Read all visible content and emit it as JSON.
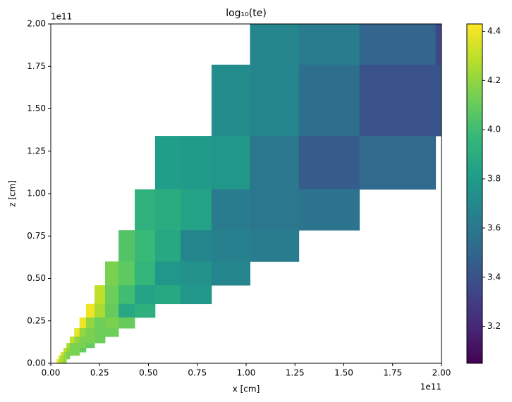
{
  "chart_data": {
    "type": "mesh",
    "title": "log₁₀(te)",
    "x_label": "x [cm]",
    "y_label": "z [cm]",
    "x_offset_label": "1e11",
    "y_offset_label": "1e11",
    "colormap": "viridis",
    "xlim": [
      0,
      2
    ],
    "ylim": [
      0,
      2
    ],
    "clim": [
      3.05,
      4.43
    ],
    "xticks": [
      {
        "value": 0,
        "label": "0.00"
      },
      {
        "value": 0.25,
        "label": "0.25"
      },
      {
        "value": 0.5,
        "label": "0.50"
      },
      {
        "value": 0.75,
        "label": "0.75"
      },
      {
        "value": 1,
        "label": "1.00"
      },
      {
        "value": 1.25,
        "label": "1.25"
      },
      {
        "value": 1.5,
        "label": "1.50"
      },
      {
        "value": 1.75,
        "label": "1.75"
      },
      {
        "value": 2,
        "label": "2.00"
      }
    ],
    "yticks": [
      {
        "value": 0,
        "label": "0.00"
      },
      {
        "value": 0.25,
        "label": "0.25"
      },
      {
        "value": 0.5,
        "label": "0.50"
      },
      {
        "value": 0.75,
        "label": "0.75"
      },
      {
        "value": 1,
        "label": "1.00"
      },
      {
        "value": 1.25,
        "label": "1.25"
      },
      {
        "value": 1.5,
        "label": "1.50"
      },
      {
        "value": 1.75,
        "label": "1.75"
      },
      {
        "value": 2,
        "label": "2.00"
      }
    ],
    "cticks": [
      3.2,
      3.4,
      3.6,
      3.8,
      {
        "value": 4,
        "label": "4.0"
      },
      4.2,
      4.4
    ],
    "cells": [
      {
        "x0": 1.02,
        "x1": 1.27,
        "z0": 1.76,
        "z1": 2,
        "value": 3.68
      },
      {
        "x0": 1.27,
        "x1": 1.58,
        "z0": 1.76,
        "z1": 2,
        "value": 3.63
      },
      {
        "x0": 1.58,
        "x1": 1.97,
        "z0": 1.76,
        "z1": 2,
        "value": 3.5
      },
      {
        "x0": 1.97,
        "x1": 2,
        "z0": 1.76,
        "z1": 2,
        "value": 3.35
      },
      {
        "x0": 0.823,
        "x1": 1.02,
        "z0": 1.34,
        "z1": 1.76,
        "value": 3.72
      },
      {
        "x0": 1.02,
        "x1": 1.27,
        "z0": 1.34,
        "z1": 1.76,
        "value": 3.68
      },
      {
        "x0": 1.27,
        "x1": 1.58,
        "z0": 1.34,
        "z1": 1.76,
        "value": 3.55
      },
      {
        "x0": 1.58,
        "x1": 2,
        "z0": 1.34,
        "z1": 1.76,
        "value": 3.4
      },
      {
        "x0": 0.534,
        "x1": 0.664,
        "z0": 1.025,
        "z1": 1.34,
        "value": 3.82
      },
      {
        "x0": 0.664,
        "x1": 0.823,
        "z0": 1.025,
        "z1": 1.34,
        "value": 3.8
      },
      {
        "x0": 0.823,
        "x1": 1.02,
        "z0": 1.025,
        "z1": 1.34,
        "value": 3.78
      },
      {
        "x0": 1.02,
        "x1": 1.27,
        "z0": 1.025,
        "z1": 1.34,
        "value": 3.6
      },
      {
        "x0": 1.27,
        "x1": 1.58,
        "z0": 1.025,
        "z1": 1.34,
        "value": 3.45
      },
      {
        "x0": 1.58,
        "x1": 1.97,
        "z0": 1.025,
        "z1": 1.34,
        "value": 3.53
      },
      {
        "x0": 0.43,
        "x1": 0.534,
        "z0": 0.784,
        "z1": 1.025,
        "value": 3.93
      },
      {
        "x0": 0.534,
        "x1": 0.664,
        "z0": 0.784,
        "z1": 1.025,
        "value": 3.9
      },
      {
        "x0": 0.664,
        "x1": 0.823,
        "z0": 0.784,
        "z1": 1.025,
        "value": 3.85
      },
      {
        "x0": 0.823,
        "x1": 1.02,
        "z0": 0.784,
        "z1": 1.025,
        "value": 3.62
      },
      {
        "x0": 1.02,
        "x1": 1.27,
        "z0": 0.784,
        "z1": 1.025,
        "value": 3.6
      },
      {
        "x0": 1.27,
        "x1": 1.58,
        "z0": 0.784,
        "z1": 1.025,
        "value": 3.58
      },
      {
        "x0": 0.347,
        "x1": 0.43,
        "z0": 0.6,
        "z1": 0.784,
        "value": 4.05
      },
      {
        "x0": 0.43,
        "x1": 0.534,
        "z0": 0.6,
        "z1": 0.784,
        "value": 3.98
      },
      {
        "x0": 0.534,
        "x1": 0.664,
        "z0": 0.6,
        "z1": 0.784,
        "value": 3.88
      },
      {
        "x0": 0.664,
        "x1": 0.823,
        "z0": 0.6,
        "z1": 0.784,
        "value": 3.68
      },
      {
        "x0": 0.823,
        "x1": 1.02,
        "z0": 0.6,
        "z1": 0.784,
        "value": 3.65
      },
      {
        "x0": 1.02,
        "x1": 1.27,
        "z0": 0.6,
        "z1": 0.784,
        "value": 3.63
      },
      {
        "x0": 0.278,
        "x1": 0.347,
        "z0": 0.46,
        "z1": 0.6,
        "value": 4.15
      },
      {
        "x0": 0.347,
        "x1": 0.43,
        "z0": 0.46,
        "z1": 0.6,
        "value": 4.08
      },
      {
        "x0": 0.43,
        "x1": 0.534,
        "z0": 0.46,
        "z1": 0.6,
        "value": 3.95
      },
      {
        "x0": 0.534,
        "x1": 0.664,
        "z0": 0.46,
        "z1": 0.6,
        "value": 3.78
      },
      {
        "x0": 0.664,
        "x1": 0.823,
        "z0": 0.46,
        "z1": 0.6,
        "value": 3.75
      },
      {
        "x0": 0.823,
        "x1": 1.02,
        "z0": 0.46,
        "z1": 0.6,
        "value": 3.68
      },
      {
        "x0": 0.224,
        "x1": 0.278,
        "z0": 0.35,
        "z1": 0.46,
        "value": 4.3
      },
      {
        "x0": 0.278,
        "x1": 0.347,
        "z0": 0.35,
        "z1": 0.46,
        "value": 4.12
      },
      {
        "x0": 0.347,
        "x1": 0.43,
        "z0": 0.35,
        "z1": 0.46,
        "value": 4
      },
      {
        "x0": 0.43,
        "x1": 0.534,
        "z0": 0.35,
        "z1": 0.46,
        "value": 3.85
      },
      {
        "x0": 0.534,
        "x1": 0.664,
        "z0": 0.35,
        "z1": 0.46,
        "value": 3.88
      },
      {
        "x0": 0.664,
        "x1": 0.823,
        "z0": 0.35,
        "z1": 0.46,
        "value": 3.78
      },
      {
        "x0": 0.18,
        "x1": 0.224,
        "z0": 0.27,
        "z1": 0.35,
        "value": 4.4
      },
      {
        "x0": 0.224,
        "x1": 0.278,
        "z0": 0.27,
        "z1": 0.35,
        "value": 4.25
      },
      {
        "x0": 0.278,
        "x1": 0.347,
        "z0": 0.27,
        "z1": 0.35,
        "value": 4.1
      },
      {
        "x0": 0.347,
        "x1": 0.43,
        "z0": 0.27,
        "z1": 0.35,
        "value": 3.88
      },
      {
        "x0": 0.43,
        "x1": 0.534,
        "z0": 0.27,
        "z1": 0.35,
        "value": 3.92
      },
      {
        "x0": 0.147,
        "x1": 0.18,
        "z0": 0.207,
        "z1": 0.27,
        "value": 4.4
      },
      {
        "x0": 0.18,
        "x1": 0.224,
        "z0": 0.207,
        "z1": 0.27,
        "value": 4.2
      },
      {
        "x0": 0.224,
        "x1": 0.278,
        "z0": 0.207,
        "z1": 0.27,
        "value": 4.12
      },
      {
        "x0": 0.278,
        "x1": 0.347,
        "z0": 0.207,
        "z1": 0.27,
        "value": 4.15
      },
      {
        "x0": 0.347,
        "x1": 0.43,
        "z0": 0.207,
        "z1": 0.27,
        "value": 4.1
      },
      {
        "x0": 0.12,
        "x1": 0.147,
        "z0": 0.157,
        "z1": 0.207,
        "value": 4.38
      },
      {
        "x0": 0.147,
        "x1": 0.18,
        "z0": 0.157,
        "z1": 0.207,
        "value": 4.2
      },
      {
        "x0": 0.18,
        "x1": 0.224,
        "z0": 0.157,
        "z1": 0.207,
        "value": 4.15
      },
      {
        "x0": 0.224,
        "x1": 0.278,
        "z0": 0.157,
        "z1": 0.207,
        "value": 4.12
      },
      {
        "x0": 0.278,
        "x1": 0.347,
        "z0": 0.157,
        "z1": 0.207,
        "value": 4.12
      },
      {
        "x0": 0.097,
        "x1": 0.12,
        "z0": 0.12,
        "z1": 0.157,
        "value": 4.3
      },
      {
        "x0": 0.12,
        "x1": 0.147,
        "z0": 0.12,
        "z1": 0.157,
        "value": 4.2
      },
      {
        "x0": 0.147,
        "x1": 0.18,
        "z0": 0.12,
        "z1": 0.157,
        "value": 4.15
      },
      {
        "x0": 0.18,
        "x1": 0.224,
        "z0": 0.12,
        "z1": 0.157,
        "value": 4.15
      },
      {
        "x0": 0.224,
        "x1": 0.278,
        "z0": 0.12,
        "z1": 0.157,
        "value": 4.12
      },
      {
        "x0": 0.08,
        "x1": 0.097,
        "z0": 0.091,
        "z1": 0.12,
        "value": 4.25
      },
      {
        "x0": 0.097,
        "x1": 0.12,
        "z0": 0.091,
        "z1": 0.12,
        "value": 4.15
      },
      {
        "x0": 0.12,
        "x1": 0.147,
        "z0": 0.091,
        "z1": 0.12,
        "value": 4.15
      },
      {
        "x0": 0.147,
        "x1": 0.18,
        "z0": 0.091,
        "z1": 0.12,
        "value": 4.15
      },
      {
        "x0": 0.18,
        "x1": 0.224,
        "z0": 0.091,
        "z1": 0.12,
        "value": 4.1
      },
      {
        "x0": 0.065,
        "x1": 0.08,
        "z0": 0.066,
        "z1": 0.091,
        "value": 4.3
      },
      {
        "x0": 0.08,
        "x1": 0.097,
        "z0": 0.066,
        "z1": 0.091,
        "value": 4.2
      },
      {
        "x0": 0.097,
        "x1": 0.12,
        "z0": 0.066,
        "z1": 0.091,
        "value": 4.15
      },
      {
        "x0": 0.12,
        "x1": 0.147,
        "z0": 0.066,
        "z1": 0.091,
        "value": 4.15
      },
      {
        "x0": 0.147,
        "x1": 0.18,
        "z0": 0.066,
        "z1": 0.091,
        "value": 4.1
      },
      {
        "x0": 0.05,
        "x1": 0.065,
        "z0": 0.046,
        "z1": 0.066,
        "value": 4.35
      },
      {
        "x0": 0.065,
        "x1": 0.08,
        "z0": 0.046,
        "z1": 0.066,
        "value": 4.2
      },
      {
        "x0": 0.08,
        "x1": 0.097,
        "z0": 0.046,
        "z1": 0.066,
        "value": 4.15
      },
      {
        "x0": 0.097,
        "x1": 0.12,
        "z0": 0.046,
        "z1": 0.066,
        "value": 4.15
      },
      {
        "x0": 0.12,
        "x1": 0.147,
        "z0": 0.046,
        "z1": 0.066,
        "value": 4.15
      },
      {
        "x0": 0.04,
        "x1": 0.05,
        "z0": 0.025,
        "z1": 0.046,
        "value": 4.35
      },
      {
        "x0": 0.05,
        "x1": 0.065,
        "z0": 0.025,
        "z1": 0.046,
        "value": 4.25
      },
      {
        "x0": 0.065,
        "x1": 0.08,
        "z0": 0.025,
        "z1": 0.046,
        "value": 4.2
      },
      {
        "x0": 0.08,
        "x1": 0.097,
        "z0": 0.025,
        "z1": 0.046,
        "value": 4.15
      },
      {
        "x0": 0.03,
        "x1": 0.04,
        "z0": 0,
        "z1": 0.025,
        "value": 4.4
      },
      {
        "x0": 0.04,
        "x1": 0.05,
        "z0": 0,
        "z1": 0.025,
        "value": 4.3
      },
      {
        "x0": 0.05,
        "x1": 0.065,
        "z0": 0,
        "z1": 0.025,
        "value": 4.25
      },
      {
        "x0": 0.065,
        "x1": 0.08,
        "z0": 0,
        "z1": 0.025,
        "value": 4.2
      }
    ]
  }
}
